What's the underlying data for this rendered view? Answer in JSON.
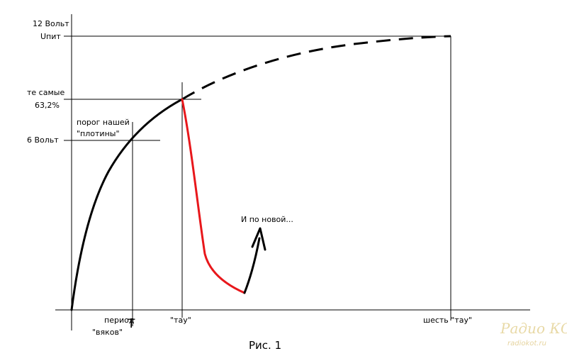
{
  "labels": {
    "v12_line1": "12 Вольт",
    "v12_line2": "Uпит",
    "same_line1": "те самые",
    "same_line2": "63,2%",
    "v6": "6 Вольт",
    "threshold_line1": "порог нашей",
    "threshold_line2": "\"плотины\"",
    "period_line1": "период",
    "period_line2": "\"вяков\"",
    "period_symbol": "T",
    "tau": "\"тау\"",
    "six_tau": "шесть \"тау\"",
    "again": "И по новой...",
    "caption": "Рис. 1"
  },
  "watermark": {
    "brand": "Радио КОТ",
    "site": "radiokot.ru"
  },
  "colors": {
    "curve": "#000000",
    "discharge": "#e8171b",
    "guide": "#000000",
    "watermark": "#e8d9a6"
  }
}
